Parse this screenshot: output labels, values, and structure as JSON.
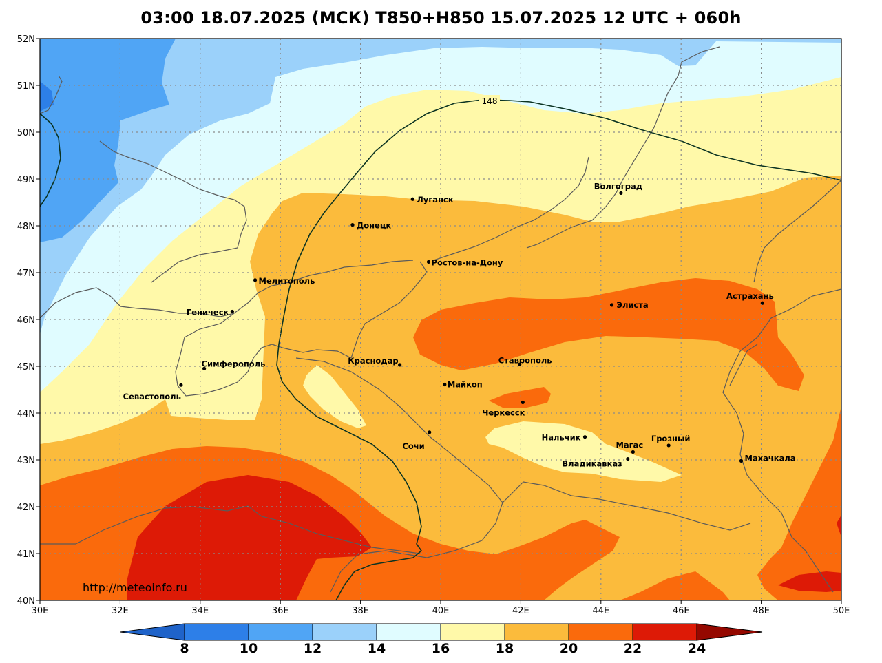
{
  "title": "03:00 18.07.2025 (МСК) T850+H850 15.07.2025 12 UTC + 060h",
  "credit": "http://meteoinfo.ru",
  "axes": {
    "lat_labels": [
      "52N",
      "51N",
      "50N",
      "49N",
      "48N",
      "47N",
      "46N",
      "45N",
      "44N",
      "43N",
      "42N",
      "41N",
      "40N"
    ],
    "lat_values": [
      52,
      51,
      50,
      49,
      48,
      47,
      46,
      45,
      44,
      43,
      42,
      41,
      40
    ],
    "lon_labels": [
      "30E",
      "32E",
      "34E",
      "36E",
      "38E",
      "40E",
      "42E",
      "44E",
      "46E",
      "48E",
      "50E"
    ],
    "lon_values": [
      30,
      32,
      34,
      36,
      38,
      40,
      42,
      44,
      46,
      48,
      50
    ],
    "lat_range": [
      40,
      52
    ],
    "lon_range": [
      30,
      50
    ],
    "grid": true
  },
  "isohypse": {
    "label": "148"
  },
  "colorbar": {
    "labels": [
      "8",
      "10",
      "12",
      "14",
      "16",
      "18",
      "20",
      "22",
      "24"
    ],
    "colors": [
      "#1f63c9",
      "#2d7fe8",
      "#50a5f5",
      "#9bd1fa",
      "#e0fcff",
      "#fff9a9",
      "#fbbb3c",
      "#fa6a0c",
      "#dd1a06",
      "#950800"
    ]
  },
  "cities": [
    {
      "name": "Луганск",
      "lon": 39.3,
      "lat": 48.57
    },
    {
      "name": "Донецк",
      "lon": 37.8,
      "lat": 48.02
    },
    {
      "name": "Волгоград",
      "lon": 44.5,
      "lat": 48.7
    },
    {
      "name": "Ростов-на-Дону",
      "lon": 39.7,
      "lat": 47.23
    },
    {
      "name": "Мелитополь",
      "lon": 35.37,
      "lat": 46.84
    },
    {
      "name": "Геническ",
      "lon": 34.8,
      "lat": 46.17
    },
    {
      "name": "Элиста",
      "lon": 44.27,
      "lat": 46.31
    },
    {
      "name": "Астрахань",
      "lon": 48.03,
      "lat": 46.35
    },
    {
      "name": "Симферополь",
      "lon": 34.1,
      "lat": 44.95
    },
    {
      "name": "Краснодар",
      "lon": 38.98,
      "lat": 45.03
    },
    {
      "name": "Ставрополь",
      "lon": 41.97,
      "lat": 45.04
    },
    {
      "name": "Севастополь",
      "lon": 33.52,
      "lat": 44.6
    },
    {
      "name": "Майкоп",
      "lon": 40.1,
      "lat": 44.61
    },
    {
      "name": "Черкесск",
      "lon": 42.05,
      "lat": 44.23
    },
    {
      "name": "Нальчик",
      "lon": 43.6,
      "lat": 43.49
    },
    {
      "name": "Грозный",
      "lon": 45.69,
      "lat": 43.31
    },
    {
      "name": "Магас",
      "lon": 44.8,
      "lat": 43.17
    },
    {
      "name": "Сочи",
      "lon": 39.72,
      "lat": 43.59
    },
    {
      "name": "Владикавказ",
      "lon": 44.67,
      "lat": 43.02
    },
    {
      "name": "Махачкала",
      "lon": 47.5,
      "lat": 42.98
    }
  ]
}
